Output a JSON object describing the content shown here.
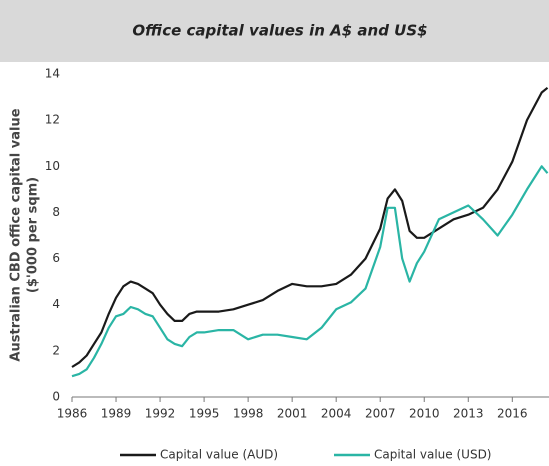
{
  "chart_data": {
    "type": "line",
    "title": "Office capital values  in A$ and US$",
    "ylabel": [
      "Australian CBD office capital value",
      "($'000 per sqm)"
    ],
    "x": [
      1986,
      1986.5,
      1987,
      1987.5,
      1988,
      1988.5,
      1989,
      1989.5,
      1990,
      1990.5,
      1991,
      1991.5,
      1992,
      1992.5,
      1993,
      1993.5,
      1994,
      1994.5,
      1995,
      1996,
      1997,
      1998,
      1999,
      2000,
      2001,
      2002,
      2003,
      2004,
      2005,
      2006,
      2007,
      2007.5,
      2008,
      2008.5,
      2009,
      2009.5,
      2010,
      2011,
      2012,
      2013,
      2014,
      2015,
      2016,
      2017,
      2018,
      2018.4
    ],
    "series": [
      {
        "name": "Capital value (AUD)",
        "color": "#1a1a1a",
        "values": [
          1.3,
          1.5,
          1.8,
          2.3,
          2.8,
          3.6,
          4.3,
          4.8,
          5.0,
          4.9,
          4.7,
          4.5,
          4.0,
          3.6,
          3.3,
          3.3,
          3.6,
          3.7,
          3.7,
          3.7,
          3.8,
          4.0,
          4.2,
          4.6,
          4.9,
          4.8,
          4.8,
          4.9,
          5.3,
          6.0,
          7.3,
          8.6,
          9.0,
          8.5,
          7.2,
          6.9,
          6.9,
          7.3,
          7.7,
          7.9,
          8.2,
          9.0,
          10.2,
          12.0,
          13.2,
          13.4
        ]
      },
      {
        "name": "Capital value (USD)",
        "color": "#2ab5a5",
        "values": [
          0.9,
          1.0,
          1.2,
          1.7,
          2.3,
          3.0,
          3.5,
          3.6,
          3.9,
          3.8,
          3.6,
          3.5,
          3.0,
          2.5,
          2.3,
          2.2,
          2.6,
          2.8,
          2.8,
          2.9,
          2.9,
          2.5,
          2.7,
          2.7,
          2.6,
          2.5,
          3.0,
          3.8,
          4.1,
          4.7,
          6.5,
          8.2,
          8.2,
          6.0,
          5.0,
          5.8,
          6.3,
          7.7,
          8.0,
          8.3,
          7.7,
          7.0,
          7.9,
          9.0,
          10.0,
          9.7
        ]
      }
    ],
    "xlim": [
      1986,
      2018.5
    ],
    "xticks": [
      1986,
      1989,
      1992,
      1995,
      1998,
      2001,
      2004,
      2007,
      2010,
      2013,
      2016
    ],
    "ylim": [
      0,
      14
    ],
    "yticks": [
      0,
      2,
      4,
      6,
      8,
      10,
      12,
      14
    ],
    "grid": false,
    "legend": "bottom"
  }
}
